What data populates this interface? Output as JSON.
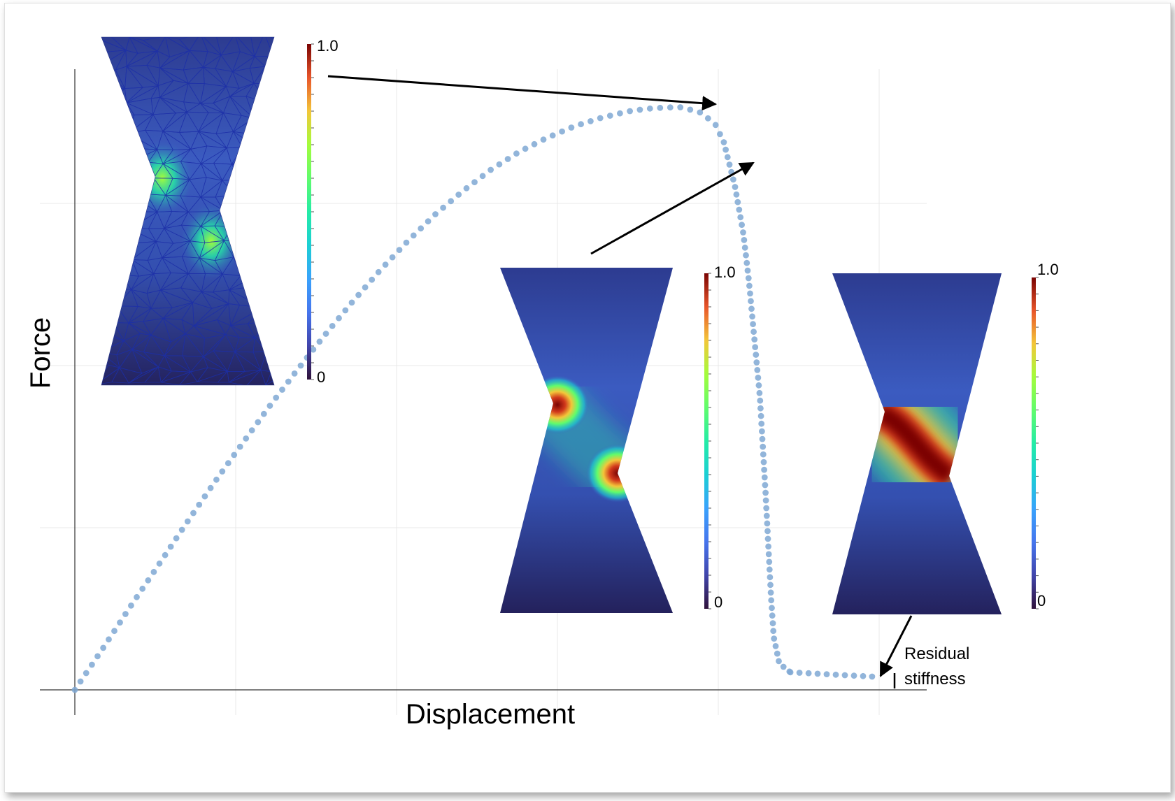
{
  "chart_data": {
    "type": "scatter",
    "xlabel": "Displacement",
    "ylabel": "Force",
    "annotation": "Residual stiffness",
    "series_color": "#7fa8d4",
    "colorbars": [
      {
        "max_label": "1.0",
        "min_label": "0"
      },
      {
        "max_label": "1.0",
        "min_label": "0"
      },
      {
        "max_label": "1.0",
        "min_label": "0"
      }
    ],
    "curve": {
      "rise": [
        [
          0,
          0
        ],
        [
          0.05,
          0.07
        ],
        [
          0.1,
          0.142
        ],
        [
          0.15,
          0.212
        ],
        [
          0.2,
          0.283
        ],
        [
          0.25,
          0.352
        ],
        [
          0.3,
          0.418
        ],
        [
          0.35,
          0.483
        ],
        [
          0.4,
          0.545
        ],
        [
          0.45,
          0.605
        ],
        [
          0.5,
          0.662
        ],
        [
          0.55,
          0.716
        ],
        [
          0.6,
          0.766
        ],
        [
          0.65,
          0.812
        ],
        [
          0.7,
          0.852
        ],
        [
          0.75,
          0.888
        ],
        [
          0.8,
          0.918
        ],
        [
          0.85,
          0.942
        ],
        [
          0.9,
          0.962
        ],
        [
          0.95,
          0.977
        ],
        [
          1.0,
          0.988
        ],
        [
          1.03,
          0.992
        ],
        [
          1.06,
          0.994
        ],
        [
          1.09,
          0.995
        ],
        [
          1.1,
          0.993
        ],
        [
          1.13,
          0.985
        ],
        [
          1.155,
          0.965
        ],
        [
          1.17,
          0.935
        ]
      ],
      "drop": [
        [
          1.17,
          0.935
        ],
        [
          1.19,
          0.86
        ],
        [
          1.205,
          0.78
        ],
        [
          1.215,
          0.7
        ],
        [
          1.225,
          0.6
        ],
        [
          1.235,
          0.5
        ],
        [
          1.24,
          0.42
        ],
        [
          1.245,
          0.34
        ],
        [
          1.25,
          0.25
        ],
        [
          1.255,
          0.16
        ],
        [
          1.26,
          0.09
        ],
        [
          1.27,
          0.045
        ],
        [
          1.29,
          0.03
        ]
      ],
      "tail": [
        [
          1.29,
          0.03
        ],
        [
          1.45,
          0.022
        ]
      ]
    },
    "xlim": [
      0,
      1.45
    ],
    "ylim": [
      0,
      1.0
    ]
  }
}
